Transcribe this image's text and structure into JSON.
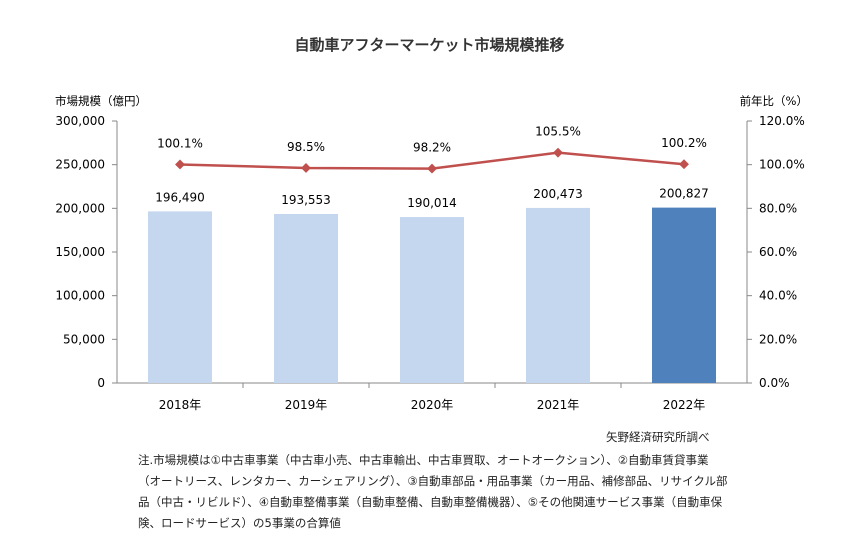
{
  "chart_data": {
    "type": "bar+line",
    "title": "自動車アフターマーケット市場規模推移",
    "categories": [
      "2018年",
      "2019年",
      "2020年",
      "2021年",
      "2022年"
    ],
    "bar_series": {
      "values": [
        196490,
        193553,
        190014,
        200473,
        200827
      ],
      "labels": [
        "196,490",
        "193,553",
        "190,014",
        "200,473",
        "200,827"
      ],
      "colors": [
        "#c5d6ef",
        "#c5d6ef",
        "#c5d6ef",
        "#c5d6ef",
        "#4f81bd"
      ]
    },
    "line_series": {
      "values": [
        100.1,
        98.5,
        98.2,
        105.5,
        100.2
      ],
      "labels": [
        "100.1%",
        "98.5%",
        "98.2%",
        "105.5%",
        "100.2%"
      ],
      "color": "#c0504d"
    },
    "left_axis": {
      "label": "市場規模（億円）",
      "range": [
        0,
        300000
      ],
      "ticks": [
        "0",
        "50,000",
        "100,000",
        "150,000",
        "200,000",
        "250,000",
        "300,000"
      ]
    },
    "right_axis": {
      "label": "前年比（%）",
      "range": [
        0,
        120
      ],
      "ticks": [
        "0.0%",
        "20.0%",
        "40.0%",
        "60.0%",
        "80.0%",
        "100.0%",
        "120.0%"
      ]
    },
    "grid": false,
    "legend": "none"
  },
  "source": "矢野経済研究所調べ",
  "note": "注.市場規模は①中古車事業（中古車小売、中古車輸出、中古車買取、オートオークション）、②自動車賃貸事業（オートリース、レンタカー、カーシェアリング）、③自動車部品・用品事業（カー用品、補修部品、リサイクル部品（中古・リビルド）、④自動車整備事業（自動車整備、自動車整備機器）、⑤その他関連サービス事業（自動車保険、ロードサービス）の5事業の合算値"
}
